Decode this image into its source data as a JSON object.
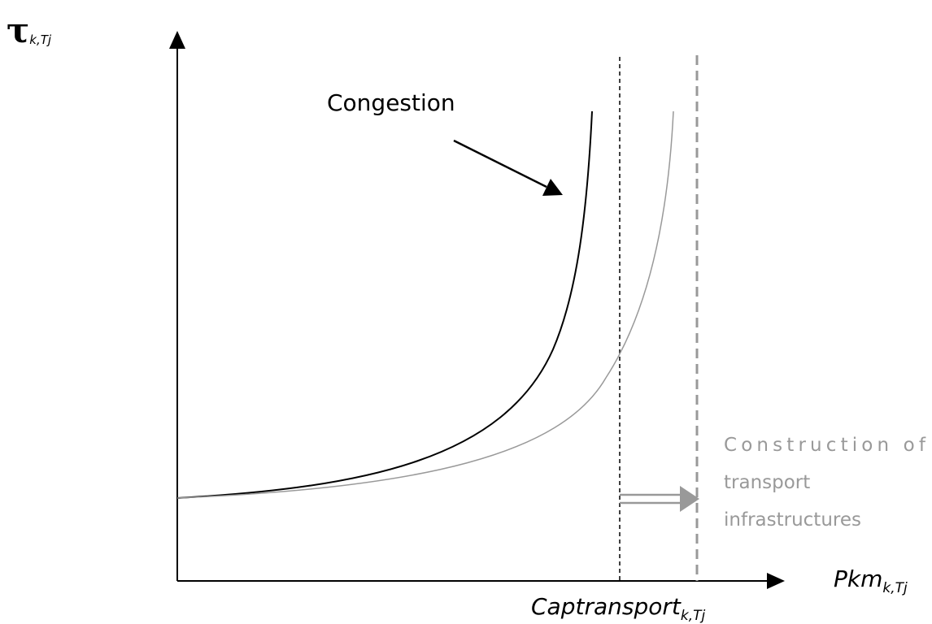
{
  "axes": {
    "y_label": {
      "main": "τ",
      "sub": "k,Tj"
    },
    "x_label": {
      "main": "Pkm",
      "sub": "k,Tj"
    }
  },
  "annotations": {
    "congestion": "Congestion",
    "capacity": {
      "main": "Captransport",
      "sub": "k,Tj"
    },
    "construction": [
      "Construction of",
      "transport",
      "infrastructures"
    ]
  }
}
